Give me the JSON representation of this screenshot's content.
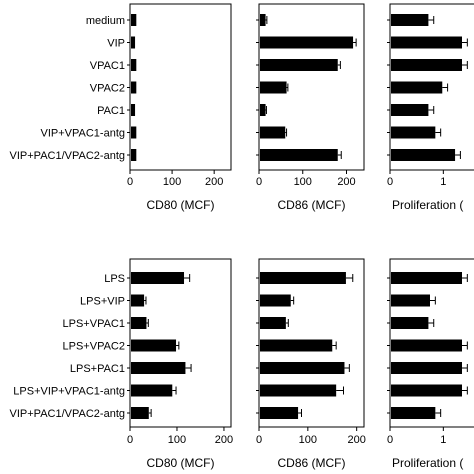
{
  "chart_data": [
    {
      "type": "bar",
      "orientation": "horizontal",
      "panel": "top",
      "categories": [
        "medium",
        "VIP",
        "VPAC1",
        "VPAC2",
        "PAC1",
        "VIP+VPAC1-antg",
        "VIP+PAC1/VPAC2-antg"
      ],
      "subplots": [
        {
          "xlabel": "CD80 (MCF)",
          "ticks": [
            "0",
            "100",
            "200"
          ],
          "xlim": [
            0,
            240
          ],
          "values": [
            15,
            12,
            15,
            15,
            12,
            15,
            15
          ],
          "errors": [
            0,
            0,
            0,
            0,
            0,
            0,
            0
          ]
        },
        {
          "xlabel": "CD86 (MCF)",
          "ticks": [
            "0",
            "100",
            "200"
          ],
          "xlim": [
            0,
            240
          ],
          "values": [
            15,
            215,
            180,
            63,
            15,
            60,
            180
          ],
          "errors": [
            3,
            7,
            6,
            3,
            2,
            3,
            8
          ]
        },
        {
          "xlabel": "Proliferation (",
          "ticks": [
            "0",
            "1"
          ],
          "xlim": [
            0,
            1.8
          ],
          "values": [
            0.72,
            1.35,
            1.35,
            0.98,
            0.72,
            0.85,
            1.22
          ],
          "errors": [
            0.1,
            0.1,
            0.1,
            0.1,
            0.1,
            0.1,
            0.1
          ]
        }
      ]
    },
    {
      "type": "bar",
      "orientation": "horizontal",
      "panel": "bottom",
      "categories": [
        "LPS",
        "LPS+VIP",
        "LPS+VPAC1",
        "LPS+VPAC2",
        "LPS+PAC1",
        "LPS+VIP+VPAC1-antg",
        "VIP+PAC1/VPAC2-antg"
      ],
      "subplots": [
        {
          "xlabel": "CD80 (MCF)",
          "ticks": [
            "0",
            "100",
            "200"
          ],
          "xlim": [
            0,
            215
          ],
          "values": [
            115,
            30,
            35,
            98,
            118,
            90,
            40
          ],
          "errors": [
            12,
            4,
            4,
            6,
            12,
            8,
            5
          ]
        },
        {
          "xlabel": "CD86 (MCF)",
          "ticks": [
            "0",
            "100",
            "200"
          ],
          "xlim": [
            0,
            215
          ],
          "values": [
            178,
            65,
            55,
            150,
            175,
            158,
            80
          ],
          "errors": [
            14,
            6,
            5,
            8,
            10,
            15,
            7
          ]
        },
        {
          "xlabel": "Proliferation (",
          "ticks": [
            "0",
            "1"
          ],
          "xlim": [
            0,
            1.8
          ],
          "values": [
            1.35,
            0.75,
            0.72,
            1.35,
            1.35,
            1.35,
            0.85
          ],
          "errors": [
            0.1,
            0.1,
            0.1,
            0.1,
            0.1,
            0.1,
            0.1
          ]
        }
      ]
    }
  ]
}
